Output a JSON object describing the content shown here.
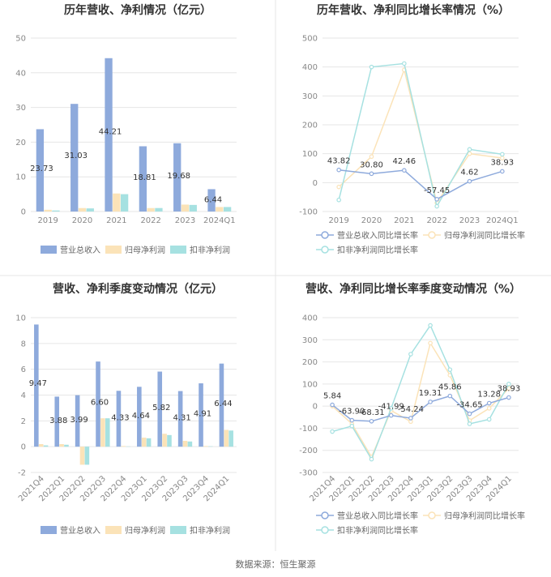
{
  "colors": {
    "revenue": "#8eaadc",
    "net_profit": "#fbe3b8",
    "deducted_profit": "#a6e1e1",
    "grid": "#e6e6e6",
    "divider": "#e6e6e6"
  },
  "chart_data": [
    {
      "type": "bar",
      "title": "历年营收、净利情况（亿元）",
      "categories": [
        "2019",
        "2020",
        "2021",
        "2022",
        "2023",
        "2024Q1"
      ],
      "ylim": [
        0,
        50
      ],
      "yticks": [
        0,
        10,
        20,
        30,
        40,
        50
      ],
      "series": [
        {
          "name": "营业总收入",
          "values": [
            23.73,
            31.03,
            44.21,
            18.81,
            19.68,
            6.44
          ],
          "labels": [
            "23.73",
            "31.03",
            "44.21",
            "18.81",
            "19.68",
            "6.44"
          ]
        },
        {
          "name": "归母净利润",
          "values": [
            0.5,
            1.0,
            5.2,
            1.0,
            2.0,
            1.3
          ]
        },
        {
          "name": "扣非净利润",
          "values": [
            0.3,
            0.9,
            5.0,
            1.0,
            1.9,
            1.3
          ]
        }
      ],
      "legend": "bottom"
    },
    {
      "type": "line",
      "title": "历年营收、净利同比增长率情况（%）",
      "categories": [
        "2019",
        "2020",
        "2021",
        "2022",
        "2023",
        "2024Q1"
      ],
      "ylim": [
        -100,
        500
      ],
      "yticks": [
        -100,
        0,
        100,
        200,
        300,
        400,
        500
      ],
      "series": [
        {
          "name": "营业总收入同比增长率",
          "values": [
            43.82,
            30.8,
            42.46,
            -57.45,
            4.62,
            38.93
          ],
          "labels": [
            "43.82",
            "30.80",
            "42.46",
            "-57.45",
            "4.62",
            "38.93"
          ]
        },
        {
          "name": "归母净利润同比增长率",
          "values": [
            -15,
            90,
            390,
            -70,
            100,
            85
          ]
        },
        {
          "name": "扣非净利润同比增长率",
          "values": [
            -60,
            400,
            412,
            -82,
            115,
            98
          ]
        }
      ],
      "legend": "bottom"
    },
    {
      "type": "bar",
      "title": "营收、净利季度变动情况（亿元）",
      "categories": [
        "2021Q4",
        "2022Q1",
        "2022Q2",
        "2022Q3",
        "2022Q4",
        "2023Q1",
        "2023Q2",
        "2023Q3",
        "2023Q4",
        "2024Q1"
      ],
      "ylim": [
        -2,
        10
      ],
      "yticks": [
        -2,
        0,
        2,
        4,
        6,
        8,
        10
      ],
      "series": [
        {
          "name": "营业总收入",
          "values": [
            9.47,
            3.88,
            3.99,
            6.6,
            4.33,
            4.64,
            5.82,
            4.31,
            4.91,
            6.44
          ],
          "labels": [
            "9.47",
            "3.88",
            "3.99",
            "6.60",
            "4.33",
            "4.64",
            "5.82",
            "4.31",
            "4.91",
            "6.44"
          ]
        },
        {
          "name": "归母净利润",
          "values": [
            0.2,
            0.2,
            -1.4,
            2.2,
            0.05,
            0.7,
            1.0,
            0.45,
            0.05,
            1.3
          ]
        },
        {
          "name": "扣非净利润",
          "values": [
            0.1,
            0.15,
            -1.4,
            2.2,
            0.02,
            0.65,
            0.9,
            0.4,
            0.03,
            1.25
          ]
        }
      ],
      "legend": "bottom"
    },
    {
      "type": "line",
      "title": "营收、净利同比增长率季度变动情况（%）",
      "categories": [
        "2021Q4",
        "2022Q1",
        "2022Q2",
        "2022Q3",
        "2022Q4",
        "2023Q1",
        "2023Q2",
        "2023Q3",
        "2023Q4",
        "2024Q1"
      ],
      "ylim": [
        -300,
        400
      ],
      "yticks": [
        -300,
        -200,
        -100,
        0,
        100,
        200,
        300,
        400
      ],
      "series": [
        {
          "name": "营业总收入同比增长率",
          "values": [
            5.84,
            -63.9,
            -68.31,
            -41.99,
            -54.24,
            19.31,
            45.86,
            -34.65,
            13.28,
            38.93
          ],
          "labels": [
            "5.84",
            "-63.90",
            "-68.31",
            "-41.99",
            "-54.24",
            "19.31",
            "45.86",
            "-34.65",
            "13.28",
            "38.93"
          ]
        },
        {
          "name": "归母净利润同比增长率",
          "values": [
            0,
            -80,
            -230,
            -20,
            -70,
            285,
            140,
            -65,
            -10,
            80
          ]
        },
        {
          "name": "扣非净利润同比增长率",
          "values": [
            -115,
            -90,
            -240,
            -10,
            235,
            365,
            165,
            -80,
            -60,
            100
          ]
        }
      ],
      "legend": "bottom"
    }
  ],
  "source": "数据来源：恒生聚源"
}
